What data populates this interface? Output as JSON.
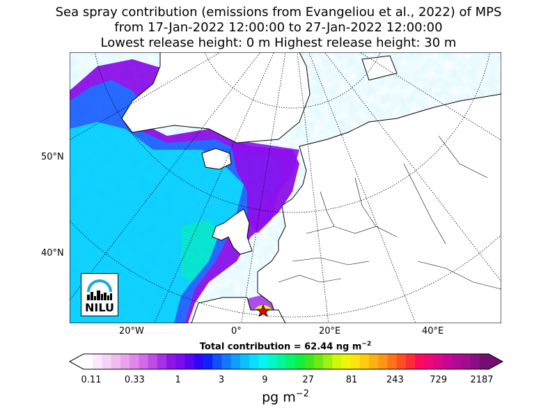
{
  "title": {
    "line1": "Sea spray contribution (emissions from Evangeliou et al., 2022) of MPS",
    "line2": "from 17-Jan-2022 12:00:00 to 27-Jan-2022 12:00:00",
    "line3": "Lowest release height: 0 m      Highest release height: 30 m"
  },
  "map": {
    "lat_labels": [
      "50°N",
      "40°N"
    ],
    "lon_labels": [
      "20°W",
      "0°",
      "20°E",
      "40°E"
    ],
    "release_site_marker": "star",
    "logo_text": "NILU"
  },
  "total_contribution": "Total contribution = 62.44 ng m",
  "total_exponent": "−2",
  "colorbar": {
    "ticks": [
      "0.11",
      "0.33",
      "1",
      "3",
      "9",
      "27",
      "81",
      "243",
      "729",
      "2187"
    ],
    "unit": "pg m",
    "unit_exponent": "−2",
    "colors": [
      "#ffffff",
      "#fbe8fb",
      "#f6d3f6",
      "#efbcef",
      "#e8a3ec",
      "#de88ec",
      "#d06be9",
      "#bf4ce6",
      "#a92ee6",
      "#8f14ea",
      "#7a0af0",
      "#5a05f5",
      "#2e06fa",
      "#0b24ff",
      "#1050ff",
      "#1278ff",
      "#0f9eff",
      "#0cc0ff",
      "#08deff",
      "#03f6f4",
      "#04f7c6",
      "#05f79a",
      "#07f56c",
      "#12ef3e",
      "#3ee820",
      "#6ee914",
      "#9ef00e",
      "#cff70a",
      "#eef50a",
      "#fae50d",
      "#fdcc0f",
      "#ffb012",
      "#ff9416",
      "#ff731b",
      "#ff4f22",
      "#ff2a3a",
      "#ff0a5b",
      "#f00675",
      "#dc0686",
      "#c80691",
      "#b40994",
      "#a00d8e",
      "#8a0e82",
      "#720f70"
    ]
  }
}
